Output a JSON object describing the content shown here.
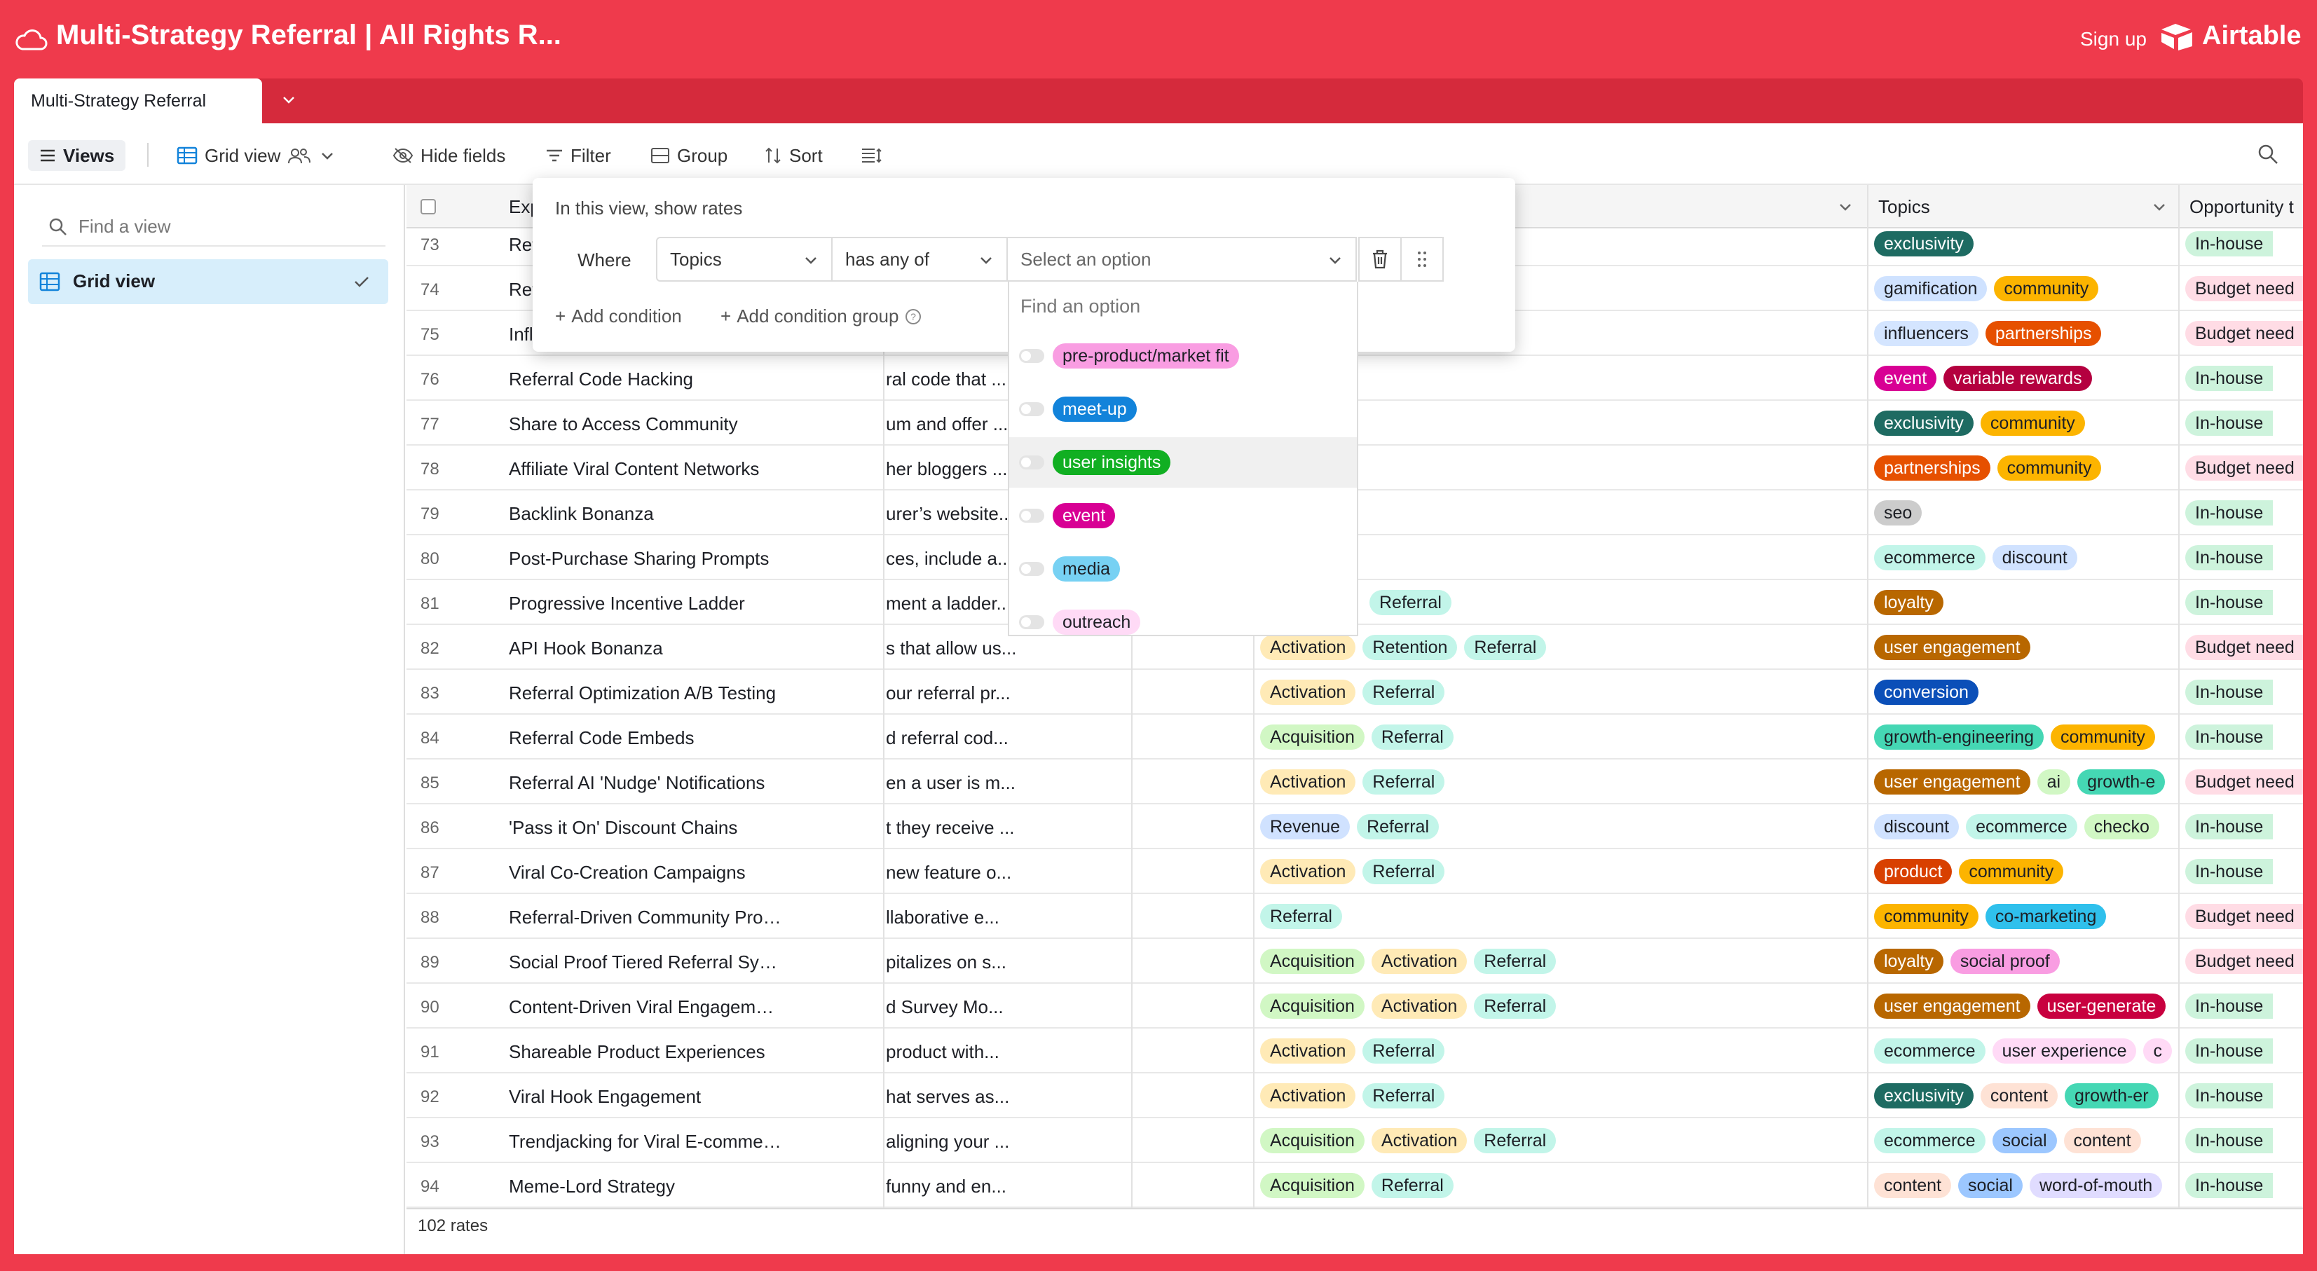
{
  "header": {
    "base_title": "Multi-Strategy Referral | All Rights R...",
    "signup": "Sign up",
    "brand": "Airtable"
  },
  "tabbar": {
    "table_name": "Multi-Strategy Referral"
  },
  "toolbar": {
    "views": "Views",
    "grid_view": "Grid view",
    "hide_fields": "Hide fields",
    "filter": "Filter",
    "group": "Group",
    "sort": "Sort"
  },
  "sidebar": {
    "search_placeholder": "Find a view",
    "views": [
      {
        "label": "Grid view",
        "selected": true
      }
    ]
  },
  "grid": {
    "columns": [
      "Exp",
      "Topics",
      "Opportunity t"
    ],
    "rows": [
      {
        "num": "73",
        "name": "Ref",
        "desc": "",
        "stages": [],
        "topics": [
          [
            "exclusivity",
            "#1e6b62",
            "#fff"
          ]
        ],
        "opp": [
          "In-house",
          "#cdf3dc"
        ]
      },
      {
        "num": "74",
        "name": "Ref",
        "desc": "",
        "stages": [],
        "topics": [
          [
            "gamification",
            "#cfe2ff",
            "#1d1f25"
          ],
          [
            "community",
            "#fcb400",
            "#1d1f25"
          ]
        ],
        "opp": [
          "Budget need",
          "#ffdce5"
        ]
      },
      {
        "num": "75",
        "name": "Infl",
        "desc": "",
        "stages": [],
        "topics": [
          [
            "influencers",
            "#d4e5ff",
            "#1d1f25"
          ],
          [
            "partnerships",
            "#e65000",
            "#fff"
          ]
        ],
        "opp": [
          "Budget need",
          "#ffdce5"
        ]
      },
      {
        "num": "76",
        "name": "Referral Code Hacking",
        "desc": "ral code that ...",
        "stages": [],
        "topics": [
          [
            "event",
            "#d80094",
            "#fff"
          ],
          [
            "variable rewards",
            "#b4003f",
            "#fff"
          ]
        ],
        "opp": [
          "In-house",
          "#cdf3dc"
        ]
      },
      {
        "num": "77",
        "name": "Share to Access Community",
        "desc": "um and offer ...",
        "stages": [],
        "topics": [
          [
            "exclusivity",
            "#1e6b62",
            "#fff"
          ],
          [
            "community",
            "#fcb400",
            "#1d1f25"
          ]
        ],
        "opp": [
          "In-house",
          "#cdf3dc"
        ]
      },
      {
        "num": "78",
        "name": "Affiliate Viral Content Networks",
        "desc": "her bloggers ...",
        "stages": [],
        "topics": [
          [
            "partnerships",
            "#e65000",
            "#fff"
          ],
          [
            "community",
            "#fcb400",
            "#1d1f25"
          ]
        ],
        "opp": [
          "Budget need",
          "#ffdce5"
        ]
      },
      {
        "num": "79",
        "name": "Backlink Bonanza",
        "desc": "urer’s website...",
        "stages": [],
        "topics": [
          [
            "seo",
            "#cccccc",
            "#1d1f25"
          ]
        ],
        "opp": [
          "In-house",
          "#cdf3dc"
        ]
      },
      {
        "num": "80",
        "name": "Post-Purchase Sharing Prompts",
        "desc": "ces, include a...",
        "stages": [],
        "topics": [
          [
            "ecommerce",
            "#c2f5e9",
            "#1d1f25"
          ],
          [
            "discount",
            "#d0e2ff",
            "#1d1f25"
          ]
        ],
        "opp": [
          "In-house",
          "#cdf3dc"
        ]
      },
      {
        "num": "81",
        "name": "Progressive Incentive Ladder",
        "desc": "ment a ladder...",
        "stages": [
          [
            "Referral",
            "#c2f5e9"
          ]
        ],
        "topics": [
          [
            "loyalty",
            "#b86700",
            "#fff"
          ]
        ],
        "opp": [
          "In-house",
          "#cdf3dc"
        ]
      },
      {
        "num": "82",
        "name": "API Hook Bonanza",
        "desc": "s that allow us...",
        "stages": [
          [
            "Activation",
            "#ffeab6"
          ],
          [
            "Retention",
            "#c2f5e9"
          ],
          [
            "Referral",
            "#c2f5e9"
          ]
        ],
        "topics": [
          [
            "user engagement",
            "#b86700",
            "#fff"
          ]
        ],
        "opp": [
          "Budget need",
          "#ffdce5"
        ]
      },
      {
        "num": "83",
        "name": "Referral Optimization A/B Testing",
        "desc": "our referral pr...",
        "stages": [
          [
            "Activation",
            "#ffeab6"
          ],
          [
            "Referral",
            "#c2f5e9"
          ]
        ],
        "topics": [
          [
            "conversion",
            "#0b4fb8",
            "#fff"
          ]
        ],
        "opp": [
          "In-house",
          "#cdf3dc"
        ]
      },
      {
        "num": "84",
        "name": "Referral Code Embeds",
        "desc": "d referral cod...",
        "stages": [
          [
            "Acquisition",
            "#d1f7c4"
          ],
          [
            "Referral",
            "#c2f5e9"
          ]
        ],
        "topics": [
          [
            "growth-engineering",
            "#45d7b4",
            "#1d1f25"
          ],
          [
            "community",
            "#fcb400",
            "#1d1f25"
          ]
        ],
        "opp": [
          "In-house",
          "#cdf3dc"
        ]
      },
      {
        "num": "85",
        "name": "Referral AI 'Nudge' Notifications",
        "desc": "en a user is m...",
        "stages": [
          [
            "Activation",
            "#ffeab6"
          ],
          [
            "Referral",
            "#c2f5e9"
          ]
        ],
        "topics": [
          [
            "user engagement",
            "#b86700",
            "#fff"
          ],
          [
            "ai",
            "#d1f7c4",
            "#1d1f25"
          ],
          [
            "growth-e",
            "#45d7b4",
            "#1d1f25"
          ]
        ],
        "opp": [
          "Budget need",
          "#ffdce5"
        ]
      },
      {
        "num": "86",
        "name": "'Pass it On' Discount Chains",
        "desc": "t they receive ...",
        "stages": [
          [
            "Revenue",
            "#d0e2ff"
          ],
          [
            "Referral",
            "#c2f5e9"
          ]
        ],
        "topics": [
          [
            "discount",
            "#d0e2ff",
            "#1d1f25"
          ],
          [
            "ecommerce",
            "#c2f5e9",
            "#1d1f25"
          ],
          [
            "checko",
            "#d1f7c4",
            "#1d1f25"
          ]
        ],
        "opp": [
          "In-house",
          "#cdf3dc"
        ]
      },
      {
        "num": "87",
        "name": "Viral Co-Creation Campaigns",
        "desc": "new feature o...",
        "stages": [
          [
            "Activation",
            "#ffeab6"
          ],
          [
            "Referral",
            "#c2f5e9"
          ]
        ],
        "topics": [
          [
            "product",
            "#d84000",
            "#fff"
          ],
          [
            "community",
            "#fcb400",
            "#1d1f25"
          ]
        ],
        "opp": [
          "In-house",
          "#cdf3dc"
        ]
      },
      {
        "num": "88",
        "name": "Referral-Driven Community Projects",
        "desc": "llaborative e...",
        "stages": [
          [
            "Referral",
            "#c2f5e9"
          ]
        ],
        "topics": [
          [
            "community",
            "#fcb400",
            "#1d1f25"
          ],
          [
            "co-marketing",
            "#2fc0ec",
            "#1d1f25"
          ]
        ],
        "opp": [
          "Budget need",
          "#ffdce5"
        ]
      },
      {
        "num": "89",
        "name": "Social Proof Tiered Referral System",
        "desc": "pitalizes on s...",
        "stages": [
          [
            "Acquisition",
            "#d1f7c4"
          ],
          [
            "Activation",
            "#ffeab6"
          ],
          [
            "Referral",
            "#c2f5e9"
          ]
        ],
        "topics": [
          [
            "loyalty",
            "#b86700",
            "#fff"
          ],
          [
            "social proof",
            "#f99de2",
            "#1d1f25"
          ]
        ],
        "opp": [
          "Budget need",
          "#ffdce5"
        ]
      },
      {
        "num": "90",
        "name": "Content-Driven Viral Engagement Loop",
        "desc": "d Survey Mo...",
        "stages": [
          [
            "Acquisition",
            "#d1f7c4"
          ],
          [
            "Activation",
            "#ffeab6"
          ],
          [
            "Referral",
            "#c2f5e9"
          ]
        ],
        "topics": [
          [
            "user engagement",
            "#b86700",
            "#fff"
          ],
          [
            "user-generate",
            "#c8003f",
            "#fff"
          ]
        ],
        "opp": [
          "In-house",
          "#cdf3dc"
        ]
      },
      {
        "num": "91",
        "name": "Shareable Product Experiences",
        "desc": "product with...",
        "stages": [
          [
            "Activation",
            "#ffeab6"
          ],
          [
            "Referral",
            "#c2f5e9"
          ]
        ],
        "topics": [
          [
            "ecommerce",
            "#c2f5e9",
            "#1d1f25"
          ],
          [
            "user experience",
            "#ffdaf6",
            "#1d1f25"
          ],
          [
            "c",
            "#ffdaf6",
            "#1d1f25"
          ]
        ],
        "opp": [
          "In-house",
          "#cdf3dc"
        ]
      },
      {
        "num": "92",
        "name": "Viral Hook Engagement",
        "desc": "hat serves as...",
        "stages": [
          [
            "Activation",
            "#ffeab6"
          ],
          [
            "Referral",
            "#c2f5e9"
          ]
        ],
        "topics": [
          [
            "exclusivity",
            "#1e6b62",
            "#fff"
          ],
          [
            "content",
            "#fee2d5",
            "#1d1f25"
          ],
          [
            "growth-er",
            "#45d7b4",
            "#1d1f25"
          ]
        ],
        "opp": [
          "In-house",
          "#cdf3dc"
        ]
      },
      {
        "num": "93",
        "name": "Trendjacking for Viral E-commerce Camp...",
        "desc": "aligning your ...",
        "stages": [
          [
            "Acquisition",
            "#d1f7c4"
          ],
          [
            "Activation",
            "#ffeab6"
          ],
          [
            "Referral",
            "#c2f5e9"
          ]
        ],
        "topics": [
          [
            "ecommerce",
            "#c2f5e9",
            "#1d1f25"
          ],
          [
            "social",
            "#9cc7ff",
            "#1d1f25"
          ],
          [
            "content",
            "#fee2d5",
            "#1d1f25"
          ]
        ],
        "opp": [
          "In-house",
          "#cdf3dc"
        ]
      },
      {
        "num": "94",
        "name": "Meme-Lord Strategy",
        "desc": "funny and en...",
        "stages": [
          [
            "Acquisition",
            "#d1f7c4"
          ],
          [
            "Referral",
            "#c2f5e9"
          ]
        ],
        "topics": [
          [
            "content",
            "#fee2d5",
            "#1d1f25"
          ],
          [
            "social",
            "#9cc7ff",
            "#1d1f25"
          ],
          [
            "word-of-mouth",
            "#e0dcff",
            "#1d1f25"
          ]
        ],
        "opp": [
          "In-house",
          "#cdf3dc"
        ]
      }
    ],
    "footer": "102 rates"
  },
  "filter": {
    "title": "In this view, show rates",
    "where": "Where",
    "field": "Topics",
    "operator": "has any of",
    "value_placeholder": "Select an option",
    "add_condition": "Add condition",
    "add_condition_group": "Add condition group",
    "dropdown_search_placeholder": "Find an option",
    "options": [
      {
        "label": "pre-product/market fit",
        "bg": "#f99de2",
        "fg": "#1d1f25"
      },
      {
        "label": "meet-up",
        "bg": "#1283da",
        "fg": "#fff"
      },
      {
        "label": "user insights",
        "bg": "#11af22",
        "fg": "#fff"
      },
      {
        "label": "event",
        "bg": "#d80094",
        "fg": "#fff"
      },
      {
        "label": "media",
        "bg": "#77d1f3",
        "fg": "#1d1f25"
      },
      {
        "label": "outreach",
        "bg": "#ffdaf6",
        "fg": "#1d1f25"
      }
    ],
    "highlighted_option": 2
  },
  "colors": {
    "brand_red": "#ef3a4c",
    "tab_bar_red": "#d52a3c",
    "selected_view_bg": "#d7eefb"
  }
}
